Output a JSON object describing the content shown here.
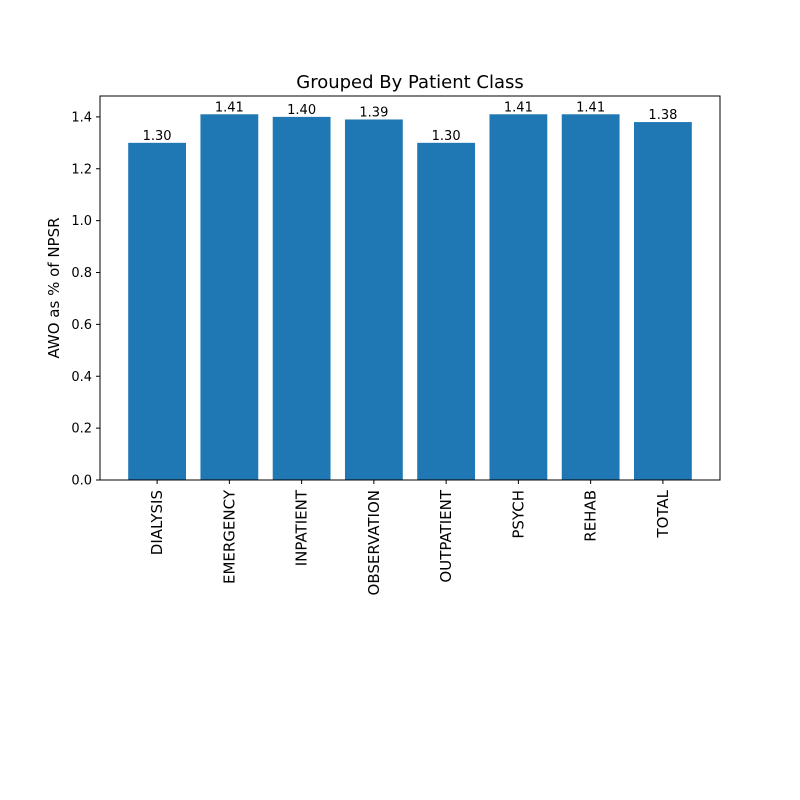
{
  "chart_data": {
    "type": "bar",
    "title": "Grouped By Patient Class",
    "xlabel": "",
    "ylabel": "AWO as % of NPSR",
    "categories": [
      "DIALYSIS",
      "EMERGENCY",
      "INPATIENT",
      "OBSERVATION",
      "OUTPATIENT",
      "PSYCH",
      "REHAB",
      "TOTAL"
    ],
    "values": [
      1.3,
      1.41,
      1.4,
      1.39,
      1.3,
      1.41,
      1.41,
      1.38
    ],
    "data_labels": [
      "1.30",
      "1.41",
      "1.40",
      "1.39",
      "1.30",
      "1.41",
      "1.41",
      "1.38"
    ],
    "yticks": [
      0.0,
      0.2,
      0.4,
      0.6,
      0.8,
      1.0,
      1.2,
      1.4
    ],
    "ytick_labels": [
      "0.0",
      "0.2",
      "0.4",
      "0.6",
      "0.8",
      "1.0",
      "1.2",
      "1.4"
    ],
    "ylim": [
      0,
      1.4805
    ],
    "grid": false,
    "bar_color": "#1f77b4"
  }
}
